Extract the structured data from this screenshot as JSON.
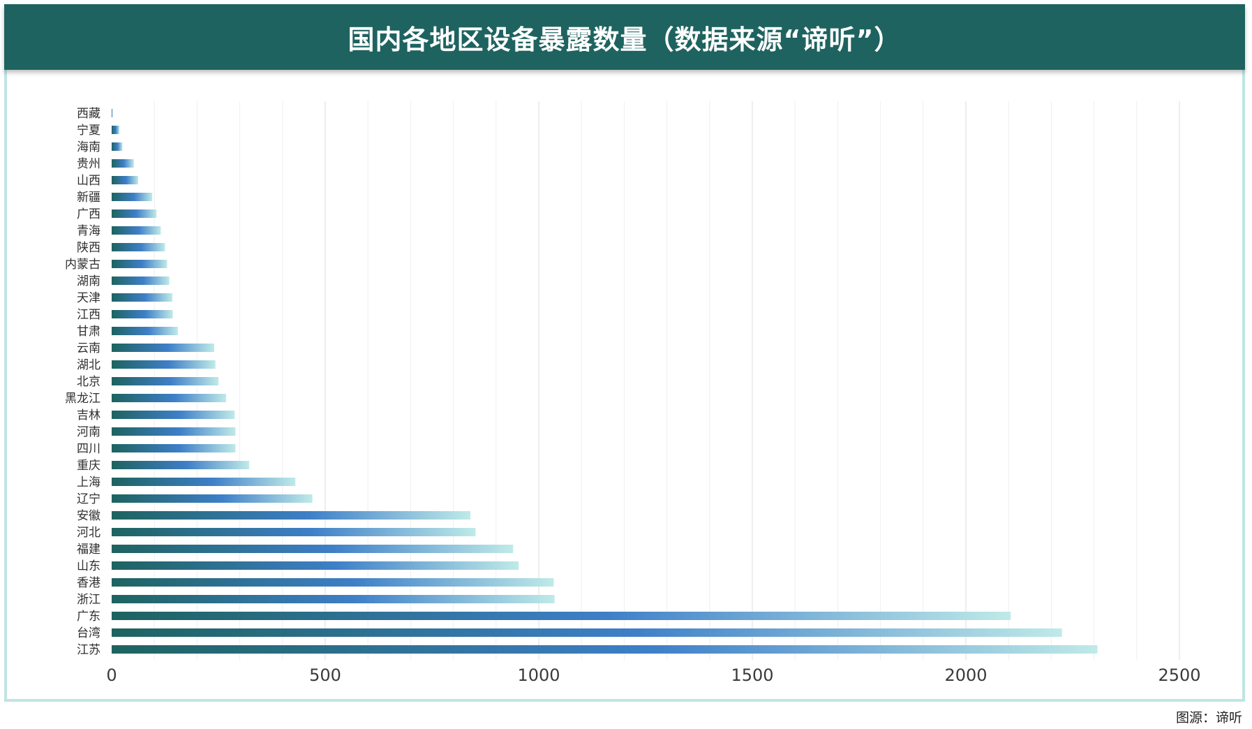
{
  "title": "国内各地区设备暴露数量（数据来源“谛听”）",
  "source_note": "图源：谛听",
  "colors": {
    "banner": "#1e6360",
    "frame_border": "#bfe5e3",
    "bar_gradient": [
      "#1e6360",
      "#3e7fc8",
      "#bfeae8"
    ],
    "grid": "#e6e6e6"
  },
  "chart_data": {
    "type": "bar",
    "orientation": "horizontal",
    "title": "国内各地区设备暴露数量（数据来源“谛听”）",
    "xlabel": "",
    "ylabel": "",
    "xlim": [
      0,
      2500
    ],
    "x_ticks": [
      0,
      500,
      1000,
      1500,
      2000,
      2500
    ],
    "grid": "vertical",
    "legend": "none",
    "categories": [
      "西藏",
      "宁夏",
      "海南",
      "贵州",
      "山西",
      "新疆",
      "广西",
      "青海",
      "陕西",
      "内蒙古",
      "湖南",
      "天津",
      "江西",
      "甘肃",
      "云南",
      "湖北",
      "北京",
      "黑龙江",
      "吉林",
      "河南",
      "四川",
      "重庆",
      "上海",
      "辽宁",
      "安徽",
      "河北",
      "福建",
      "山东",
      "香港",
      "浙江",
      "广东",
      "台湾",
      "江苏"
    ],
    "values": [
      2,
      18,
      25,
      52,
      62,
      95,
      105,
      115,
      125,
      130,
      135,
      142,
      143,
      155,
      240,
      243,
      250,
      268,
      288,
      290,
      290,
      322,
      430,
      470,
      840,
      852,
      940,
      953,
      1035,
      1037,
      2105,
      2225,
      2308
    ]
  }
}
